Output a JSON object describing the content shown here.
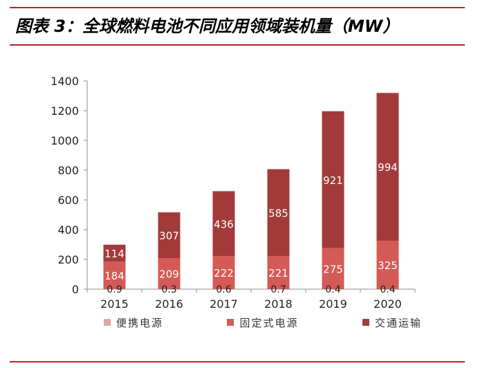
{
  "title": "图表 3：全球燃料电池不同应用领域装机量（MW）",
  "colors": {
    "accent_line": "#b3262b",
    "portable": "#e3a5a3",
    "stationary": "#d45a55",
    "transport": "#a33a3a"
  },
  "chart_data": {
    "type": "bar",
    "stacked": true,
    "categories": [
      "2015",
      "2016",
      "2017",
      "2018",
      "2019",
      "2020"
    ],
    "series": [
      {
        "name": "便携电源",
        "values": [
          0.9,
          0.3,
          0.6,
          0.7,
          0.4,
          0.4
        ],
        "color": "#e3a5a3"
      },
      {
        "name": "固定式电源",
        "values": [
          184,
          209,
          222,
          221,
          275,
          325
        ],
        "color": "#d45a55"
      },
      {
        "name": "交通运输",
        "values": [
          114,
          307,
          436,
          585,
          921,
          994
        ],
        "color": "#a33a3a"
      }
    ],
    "yticks": [
      "0",
      "200",
      "400",
      "600",
      "800",
      "1000",
      "1200",
      "1400"
    ],
    "ylim": [
      0,
      1400
    ],
    "legend_position": "bottom",
    "grid": false
  }
}
